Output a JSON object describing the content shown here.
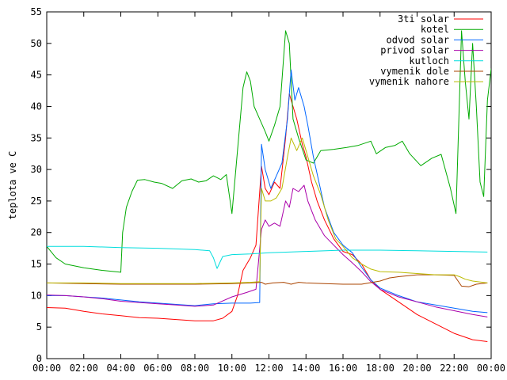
{
  "chart_data": {
    "type": "line",
    "title": "",
    "xlabel": "",
    "ylabel": "teplota ve C",
    "x_unit": "hour of day",
    "xlim": [
      0,
      24
    ],
    "ylim": [
      0,
      55
    ],
    "y_ticks": [
      0,
      5,
      10,
      15,
      20,
      25,
      30,
      35,
      40,
      45,
      50,
      55
    ],
    "x_tick_labels": [
      "00:00",
      "02:00",
      "04:00",
      "06:00",
      "08:00",
      "10:00",
      "12:00",
      "14:00",
      "16:00",
      "18:00",
      "20:00",
      "22:00",
      "00:00"
    ],
    "grid": false,
    "legend_position": "top-right",
    "series": [
      {
        "name": "3ti solar",
        "color": "#ff0000",
        "points": [
          [
            0,
            8.1
          ],
          [
            1,
            8.0
          ],
          [
            2,
            7.5
          ],
          [
            3,
            7.1
          ],
          [
            4,
            6.8
          ],
          [
            5,
            6.5
          ],
          [
            6,
            6.4
          ],
          [
            7,
            6.2
          ],
          [
            8,
            6.0
          ],
          [
            9,
            6.0
          ],
          [
            9.5,
            6.4
          ],
          [
            10,
            7.5
          ],
          [
            10.3,
            10
          ],
          [
            10.6,
            14
          ],
          [
            11,
            16
          ],
          [
            11.3,
            18
          ],
          [
            11.6,
            30.5
          ],
          [
            11.8,
            27
          ],
          [
            12,
            26
          ],
          [
            12.3,
            28
          ],
          [
            12.6,
            27
          ],
          [
            12.9,
            35
          ],
          [
            13.1,
            42
          ],
          [
            13.3,
            40
          ],
          [
            13.5,
            38
          ],
          [
            13.8,
            34
          ],
          [
            14,
            32
          ],
          [
            14.3,
            28
          ],
          [
            14.6,
            25
          ],
          [
            15,
            22
          ],
          [
            15.5,
            19
          ],
          [
            16,
            17
          ],
          [
            16.5,
            16.5
          ],
          [
            17,
            15
          ],
          [
            17.5,
            12.5
          ],
          [
            18,
            11
          ],
          [
            19,
            9
          ],
          [
            20,
            7
          ],
          [
            21,
            5.5
          ],
          [
            22,
            4
          ],
          [
            23,
            3
          ],
          [
            23.8,
            2.7
          ]
        ]
      },
      {
        "name": "kotel",
        "color": "#00aa00",
        "points": [
          [
            0,
            17.8
          ],
          [
            0.5,
            16
          ],
          [
            1,
            15
          ],
          [
            2,
            14.4
          ],
          [
            3,
            14
          ],
          [
            4,
            13.7
          ],
          [
            4.1,
            20
          ],
          [
            4.3,
            24
          ],
          [
            4.6,
            26.5
          ],
          [
            4.9,
            28.3
          ],
          [
            5.3,
            28.4
          ],
          [
            5.8,
            28
          ],
          [
            6.2,
            27.8
          ],
          [
            6.8,
            27
          ],
          [
            7.3,
            28.2
          ],
          [
            7.8,
            28.5
          ],
          [
            8.2,
            28
          ],
          [
            8.6,
            28.2
          ],
          [
            9,
            29
          ],
          [
            9.4,
            28.4
          ],
          [
            9.7,
            29.2
          ],
          [
            10,
            23
          ],
          [
            10.3,
            33
          ],
          [
            10.6,
            43
          ],
          [
            10.8,
            45.5
          ],
          [
            11,
            44
          ],
          [
            11.2,
            40
          ],
          [
            11.5,
            38
          ],
          [
            11.8,
            36
          ],
          [
            12,
            34.5
          ],
          [
            12.3,
            37
          ],
          [
            12.6,
            40
          ],
          [
            12.9,
            52
          ],
          [
            13.1,
            50
          ],
          [
            13.3,
            38
          ],
          [
            13.6,
            35
          ],
          [
            14,
            31.5
          ],
          [
            14.4,
            31
          ],
          [
            14.8,
            33
          ],
          [
            15.5,
            33.2
          ],
          [
            16.2,
            33.5
          ],
          [
            16.8,
            33.8
          ],
          [
            17.5,
            34.5
          ],
          [
            17.8,
            32.5
          ],
          [
            18.3,
            33.5
          ],
          [
            18.8,
            33.8
          ],
          [
            19.2,
            34.5
          ],
          [
            19.6,
            32.5
          ],
          [
            20.2,
            30.6
          ],
          [
            20.8,
            31.8
          ],
          [
            21.3,
            32.4
          ],
          [
            21.8,
            27
          ],
          [
            22.1,
            23
          ],
          [
            22.4,
            52
          ],
          [
            22.6,
            44
          ],
          [
            22.8,
            38
          ],
          [
            23,
            50
          ],
          [
            23.2,
            40
          ],
          [
            23.4,
            28
          ],
          [
            23.6,
            25.7
          ],
          [
            23.8,
            41
          ],
          [
            24,
            46
          ]
        ]
      },
      {
        "name": "odvod solar",
        "color": "#0066ff",
        "points": [
          [
            0,
            10
          ],
          [
            1,
            10
          ],
          [
            2,
            9.8
          ],
          [
            3,
            9.6
          ],
          [
            4,
            9.3
          ],
          [
            5,
            9.0
          ],
          [
            6,
            8.8
          ],
          [
            7,
            8.6
          ],
          [
            8,
            8.4
          ],
          [
            9,
            8.7
          ],
          [
            10,
            8.8
          ],
          [
            11,
            8.8
          ],
          [
            11.5,
            8.9
          ],
          [
            11.6,
            34
          ],
          [
            11.8,
            30
          ],
          [
            12.1,
            27
          ],
          [
            12.4,
            29
          ],
          [
            12.7,
            31
          ],
          [
            13,
            38
          ],
          [
            13.2,
            45.8
          ],
          [
            13.4,
            41
          ],
          [
            13.6,
            43
          ],
          [
            13.9,
            40
          ],
          [
            14.1,
            37
          ],
          [
            14.4,
            32
          ],
          [
            14.7,
            28
          ],
          [
            15,
            24
          ],
          [
            15.5,
            20
          ],
          [
            16,
            18
          ],
          [
            16.5,
            16.8
          ],
          [
            17,
            14.5
          ],
          [
            17.5,
            12.5
          ],
          [
            18,
            11.2
          ],
          [
            19,
            10
          ],
          [
            20,
            9
          ],
          [
            21,
            8.5
          ],
          [
            22,
            8
          ],
          [
            23,
            7.5
          ],
          [
            23.8,
            7.3
          ]
        ]
      },
      {
        "name": "privod solar",
        "color": "#aa00aa",
        "points": [
          [
            0,
            10.1
          ],
          [
            1,
            10
          ],
          [
            2,
            9.8
          ],
          [
            3,
            9.5
          ],
          [
            4,
            9.1
          ],
          [
            5,
            8.9
          ],
          [
            6,
            8.7
          ],
          [
            7,
            8.5
          ],
          [
            8,
            8.3
          ],
          [
            9,
            8.5
          ],
          [
            10,
            9.8
          ],
          [
            10.8,
            10.5
          ],
          [
            11.3,
            11
          ],
          [
            11.6,
            20.5
          ],
          [
            11.8,
            22
          ],
          [
            12,
            21
          ],
          [
            12.3,
            21.5
          ],
          [
            12.6,
            21
          ],
          [
            12.9,
            25
          ],
          [
            13.1,
            24
          ],
          [
            13.3,
            27
          ],
          [
            13.6,
            26.5
          ],
          [
            13.9,
            27.5
          ],
          [
            14.1,
            25
          ],
          [
            14.5,
            22
          ],
          [
            15,
            19.5
          ],
          [
            15.5,
            18
          ],
          [
            16,
            16.5
          ],
          [
            16.5,
            15.2
          ],
          [
            17,
            13.8
          ],
          [
            17.5,
            12.2
          ],
          [
            18,
            11
          ],
          [
            19,
            9.8
          ],
          [
            20,
            9
          ],
          [
            21,
            8.2
          ],
          [
            22,
            7.6
          ],
          [
            23,
            7
          ],
          [
            23.8,
            6.6
          ]
        ]
      },
      {
        "name": "kutloch",
        "color": "#00dddd",
        "points": [
          [
            0,
            17.8
          ],
          [
            2,
            17.8
          ],
          [
            4,
            17.6
          ],
          [
            6,
            17.5
          ],
          [
            8,
            17.3
          ],
          [
            8.8,
            17.1
          ],
          [
            9,
            16
          ],
          [
            9.2,
            14.3
          ],
          [
            9.5,
            16.2
          ],
          [
            10,
            16.5
          ],
          [
            11,
            16.6
          ],
          [
            12,
            16.8
          ],
          [
            14,
            17
          ],
          [
            16,
            17.2
          ],
          [
            18,
            17.2
          ],
          [
            20,
            17.1
          ],
          [
            22,
            17
          ],
          [
            23.8,
            16.9
          ]
        ]
      },
      {
        "name": "vymenik dole",
        "color": "#aa4400",
        "points": [
          [
            0,
            12
          ],
          [
            2,
            11.9
          ],
          [
            4,
            11.8
          ],
          [
            6,
            11.8
          ],
          [
            8,
            11.8
          ],
          [
            10,
            11.9
          ],
          [
            11,
            12
          ],
          [
            11.6,
            12.1
          ],
          [
            11.8,
            11.8
          ],
          [
            12.2,
            12
          ],
          [
            12.8,
            12.1
          ],
          [
            13.2,
            11.8
          ],
          [
            13.6,
            12.1
          ],
          [
            14,
            12
          ],
          [
            15,
            11.9
          ],
          [
            16,
            11.8
          ],
          [
            17,
            11.8
          ],
          [
            18,
            12.3
          ],
          [
            18.5,
            12.8
          ],
          [
            19,
            13
          ],
          [
            20,
            13.3
          ],
          [
            21,
            13.3
          ],
          [
            22,
            13.2
          ],
          [
            22.4,
            11.5
          ],
          [
            22.8,
            11.4
          ],
          [
            23.2,
            11.8
          ],
          [
            23.8,
            12
          ]
        ]
      },
      {
        "name": "vymenik nahore",
        "color": "#bbbb00",
        "points": [
          [
            0,
            12
          ],
          [
            2,
            12
          ],
          [
            4,
            11.9
          ],
          [
            6,
            11.9
          ],
          [
            8,
            11.9
          ],
          [
            10,
            12
          ],
          [
            11,
            12.1
          ],
          [
            11.5,
            12.2
          ],
          [
            11.6,
            27
          ],
          [
            11.8,
            25
          ],
          [
            12.1,
            25
          ],
          [
            12.4,
            25.5
          ],
          [
            12.7,
            27
          ],
          [
            13,
            32
          ],
          [
            13.2,
            35
          ],
          [
            13.5,
            33
          ],
          [
            13.8,
            35
          ],
          [
            14,
            33
          ],
          [
            14.4,
            29
          ],
          [
            14.8,
            26
          ],
          [
            15.2,
            22
          ],
          [
            15.6,
            19
          ],
          [
            16,
            17.8
          ],
          [
            16.5,
            16
          ],
          [
            17,
            15
          ],
          [
            17.5,
            14.2
          ],
          [
            18,
            13.8
          ],
          [
            19,
            13.7
          ],
          [
            20,
            13.5
          ],
          [
            21,
            13.3
          ],
          [
            22,
            13.3
          ],
          [
            22.3,
            13
          ],
          [
            22.6,
            12.6
          ],
          [
            23,
            12.3
          ],
          [
            23.8,
            12
          ]
        ]
      }
    ]
  }
}
